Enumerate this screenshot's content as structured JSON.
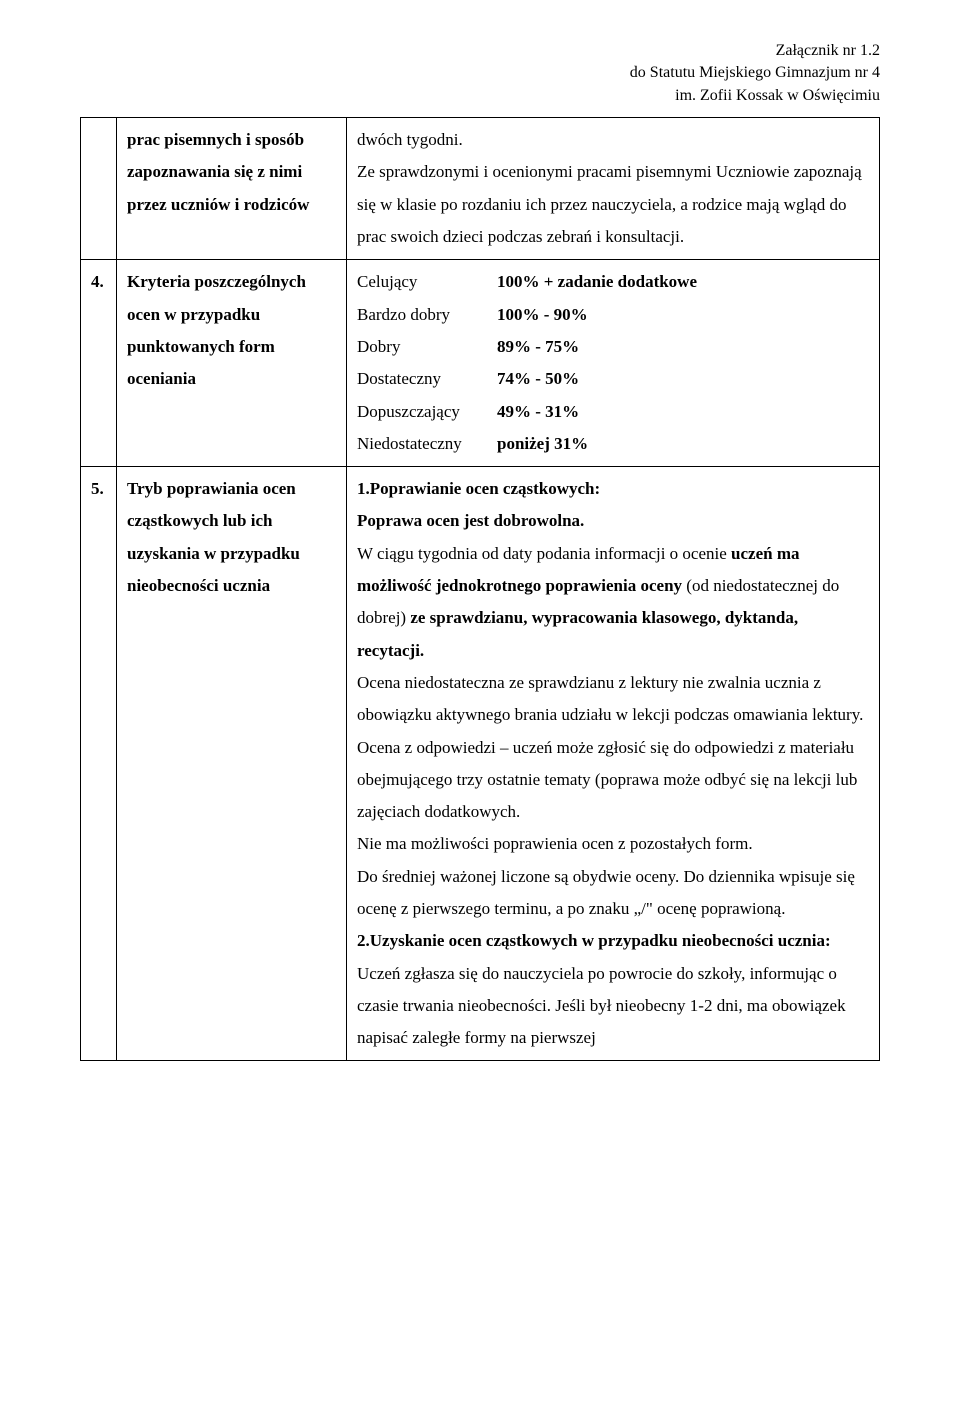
{
  "header": {
    "line1": "Załącznik nr 1.2",
    "line2": "do Statutu Miejskiego Gimnazjum nr 4",
    "line3": "im. Zofii Kossak w Oświęcimiu"
  },
  "rows": [
    {
      "num": "",
      "label_lines": [
        "prac pisemnych i sposób",
        "zapoznawania się z nimi",
        "przez uczniów i rodziców"
      ],
      "content": {
        "p1": "dwóch tygodni.",
        "p2": "Ze sprawdzonymi i ocenionymi pracami pisemnymi Uczniowie zapoznają się w klasie po rozdaniu ich przez nauczyciela, a rodzice mają wgląd do prac swoich dzieci podczas zebrań i konsultacji."
      }
    },
    {
      "num": "4.",
      "label_lines": [
        "Kryteria poszczególnych",
        "ocen w przypadku",
        "punktowanych form",
        "oceniania"
      ],
      "grades": [
        {
          "name": "Celujący",
          "range": "100% + zadanie dodatkowe"
        },
        {
          "name": "Bardzo dobry",
          "range": "100% - 90%"
        },
        {
          "name": "Dobry",
          "range": "89% - 75%"
        },
        {
          "name": "Dostateczny",
          "range": "74% - 50%"
        },
        {
          "name": "Dopuszczający",
          "range": "49% - 31%"
        },
        {
          "name": "Niedostateczny",
          "range": "poniżej 31%"
        }
      ]
    },
    {
      "num": "5.",
      "label_lines": [
        "Tryb poprawiania ocen",
        "cząstkowych lub ich",
        "uzyskania w przypadku",
        "nieobecności ucznia"
      ],
      "section5": {
        "h1": "1.Poprawianie ocen cząstkowych:",
        "p1": "Poprawa ocen jest dobrowolna.",
        "p2a": "W ciągu tygodnia od daty podania informacji o ocenie ",
        "p2b": "uczeń ma możliwość jednokrotnego poprawienia oceny ",
        "p2c": "(od niedostatecznej do dobrej) ",
        "p2d": "ze sprawdzianu, wypracowania klasowego, dyktanda, recytacji.",
        "p3": "Ocena niedostateczna ze sprawdzianu z lektury nie zwalnia ucznia z obowiązku aktywnego brania udziału w lekcji podczas omawiania lektury.",
        "p4": "Ocena z odpowiedzi – uczeń może zgłosić się do odpowiedzi z materiału obejmującego trzy ostatnie tematy (poprawa może odbyć się na lekcji lub zajęciach dodatkowych.",
        "p5": "Nie ma możliwości poprawienia ocen z pozostałych form.",
        "p6": "Do średniej ważonej liczone są obydwie oceny. Do dziennika wpisuje się ocenę z pierwszego terminu, a  po znaku „/\" ocenę poprawioną.",
        "h2": "2.Uzyskanie ocen cząstkowych w przypadku nieobecności ucznia:",
        "p7": "Uczeń zgłasza się do nauczyciela po powrocie do szkoły, informując o czasie trwania nieobecności. Jeśli był nieobecny 1-2 dni, ma obowiązek napisać zaległe formy na pierwszej"
      }
    }
  ]
}
